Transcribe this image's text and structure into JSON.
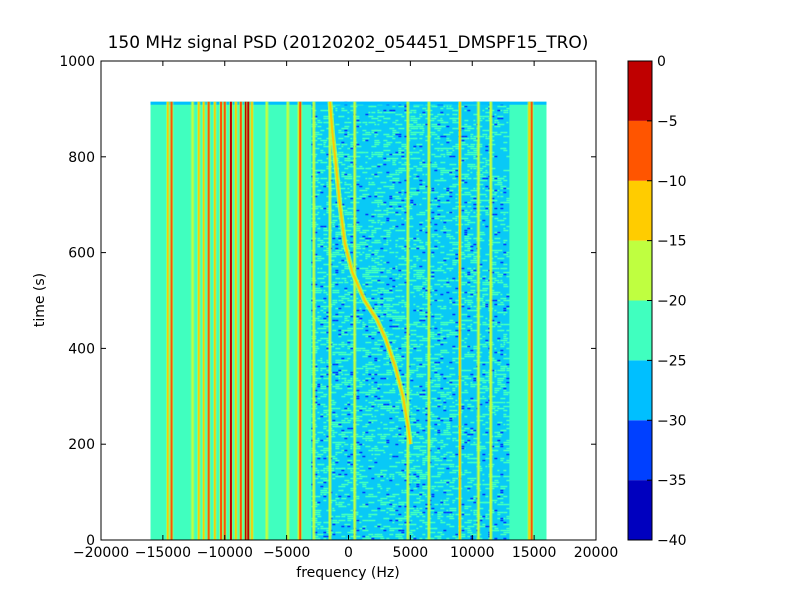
{
  "chart_data": {
    "type": "heatmap",
    "title": "150 MHz signal PSD (20120202_054451_DMSPF15_TRO)",
    "xlabel": "frequency (Hz)",
    "ylabel": "time (s)",
    "xlim": [
      -20000,
      20000
    ],
    "ylim": [
      0,
      1000
    ],
    "xticks": [
      -20000,
      -15000,
      -10000,
      -5000,
      0,
      5000,
      10000,
      15000,
      20000
    ],
    "xtick_labels": [
      "−20000",
      "−15000",
      "−10000",
      "−5000",
      "0",
      "5000",
      "10000",
      "15000",
      "20000"
    ],
    "yticks": [
      0,
      200,
      400,
      600,
      800,
      1000
    ],
    "ytick_labels": [
      "0",
      "200",
      "400",
      "600",
      "800",
      "1000"
    ],
    "data_extent": {
      "x": [
        -16000,
        16000
      ],
      "y": [
        0,
        915
      ]
    },
    "colorbar": {
      "range": [
        -40,
        0
      ],
      "levels": [
        -40,
        -35,
        -30,
        -25,
        -20,
        -15,
        -10,
        -5,
        0
      ],
      "level_labels": [
        "−40",
        "−35",
        "−30",
        "−25",
        "−20",
        "−15",
        "−10",
        "−5",
        "0"
      ],
      "colors": [
        "#0000bf",
        "#0040ff",
        "#00bfff",
        "#40ffbf",
        "#bfff40",
        "#ffcc00",
        "#ff5500",
        "#bf0000"
      ]
    },
    "background_level_range": [
      -25,
      -20
    ],
    "noise_region": {
      "x": [
        -3000,
        13000
      ],
      "level_range": [
        -30,
        -25
      ]
    },
    "vertical_lines": [
      {
        "freq": -14600,
        "level_range": [
          -15,
          -10
        ]
      },
      {
        "freq": -14300,
        "level_range": [
          -10,
          -5
        ]
      },
      {
        "freq": -12600,
        "level_range": [
          -20,
          -15
        ]
      },
      {
        "freq": -12100,
        "level_range": [
          -15,
          -10
        ]
      },
      {
        "freq": -11700,
        "level_range": [
          -15,
          -10
        ]
      },
      {
        "freq": -11300,
        "level_range": [
          -10,
          -5
        ]
      },
      {
        "freq": -10800,
        "level_range": [
          -15,
          -10
        ]
      },
      {
        "freq": -10300,
        "level_range": [
          -10,
          -5
        ]
      },
      {
        "freq": -10000,
        "level_range": [
          -10,
          -5
        ]
      },
      {
        "freq": -9500,
        "level_range": [
          -5,
          0
        ]
      },
      {
        "freq": -9100,
        "level_range": [
          -15,
          -10
        ]
      },
      {
        "freq": -8700,
        "level_range": [
          -10,
          -5
        ]
      },
      {
        "freq": -8300,
        "level_range": [
          -5,
          0
        ]
      },
      {
        "freq": -8100,
        "level_range": [
          -5,
          0
        ]
      },
      {
        "freq": -7800,
        "level_range": [
          -15,
          -10
        ]
      },
      {
        "freq": -6600,
        "level_range": [
          -20,
          -15
        ]
      },
      {
        "freq": -4900,
        "level_range": [
          -20,
          -15
        ]
      },
      {
        "freq": -4000,
        "level_range": [
          -15,
          -10
        ]
      },
      {
        "freq": -3900,
        "level_range": [
          -10,
          -5
        ]
      },
      {
        "freq": -2800,
        "level_range": [
          -20,
          -15
        ]
      },
      {
        "freq": -1500,
        "level_range": [
          -20,
          -15
        ]
      },
      {
        "freq": 500,
        "level_range": [
          -20,
          -15
        ]
      },
      {
        "freq": 4800,
        "level_range": [
          -20,
          -15
        ]
      },
      {
        "freq": 6500,
        "level_range": [
          -20,
          -15
        ]
      },
      {
        "freq": 9000,
        "level_range": [
          -15,
          -10
        ]
      },
      {
        "freq": 10500,
        "level_range": [
          -20,
          -15
        ]
      },
      {
        "freq": 11500,
        "level_range": [
          -20,
          -15
        ]
      },
      {
        "freq": 14600,
        "level_range": [
          -15,
          -10
        ]
      },
      {
        "freq": 14800,
        "level_range": [
          -10,
          -5
        ]
      }
    ],
    "doppler_trace": {
      "level_range": [
        -15,
        -10
      ],
      "points": [
        {
          "t": 915,
          "f": -1500
        },
        {
          "t": 850,
          "f": -1300
        },
        {
          "t": 780,
          "f": -1000
        },
        {
          "t": 700,
          "f": -700
        },
        {
          "t": 620,
          "f": -300
        },
        {
          "t": 560,
          "f": 300
        },
        {
          "t": 500,
          "f": 1300
        },
        {
          "t": 460,
          "f": 2300
        },
        {
          "t": 420,
          "f": 3000
        },
        {
          "t": 360,
          "f": 3800
        },
        {
          "t": 300,
          "f": 4400
        },
        {
          "t": 240,
          "f": 4800
        },
        {
          "t": 200,
          "f": 5000
        }
      ]
    }
  }
}
